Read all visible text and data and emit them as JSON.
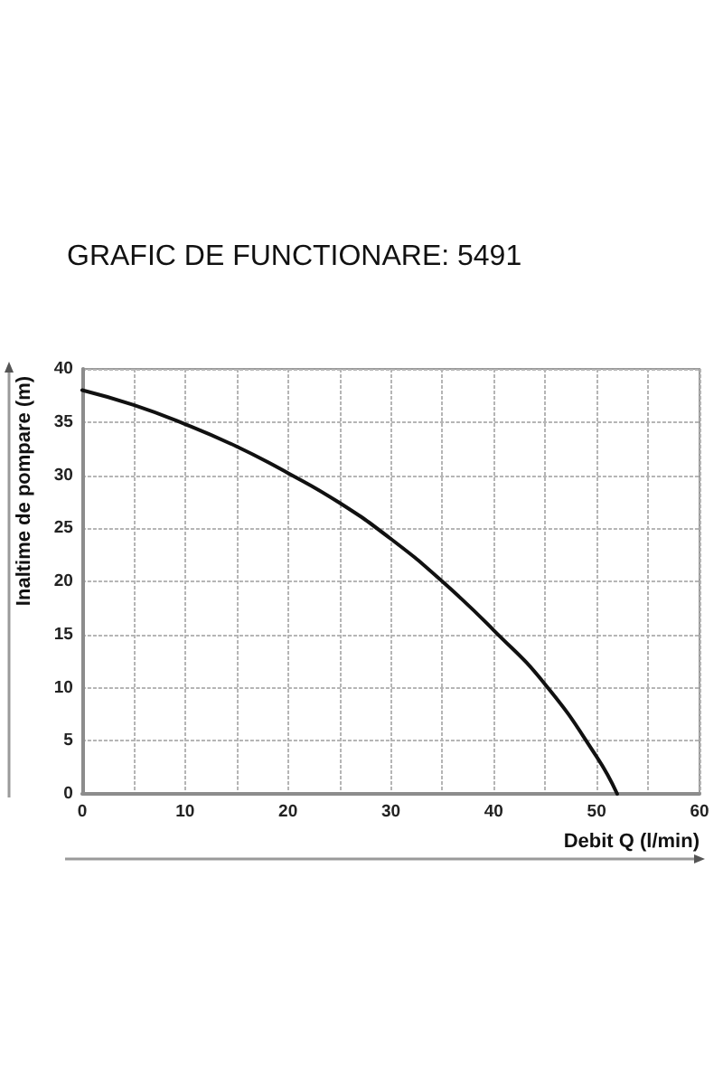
{
  "chart_data": {
    "type": "line",
    "title": "GRAFIC DE FUNCTIONARE: 5491",
    "xlabel": "Debit Q (l/min)",
    "ylabel": "Inaltime de pompare (m)",
    "x": [
      0,
      5,
      10,
      15,
      20,
      25,
      30,
      35,
      40,
      45,
      50,
      52
    ],
    "series": [
      {
        "color": "#111111",
        "values": [
          38,
          36.6,
          34.8,
          32.7,
          30.2,
          27.4,
          24,
          20,
          15.4,
          10.3,
          3.5,
          0
        ]
      }
    ],
    "xlim": [
      0,
      60
    ],
    "ylim": [
      0,
      40
    ],
    "xticks": [
      0,
      {
        "value": 5,
        "label": null
      },
      10,
      {
        "value": 15,
        "label": null
      },
      20,
      {
        "value": 25,
        "label": null
      },
      30,
      {
        "value": 35,
        "label": null
      },
      40,
      {
        "value": 45,
        "label": null
      },
      50,
      {
        "value": 55,
        "label": null
      },
      60
    ],
    "yticks": [
      0,
      5,
      10,
      15,
      20,
      25,
      30,
      35,
      40
    ],
    "grid": true,
    "marker": "none",
    "line_style": "solid"
  }
}
